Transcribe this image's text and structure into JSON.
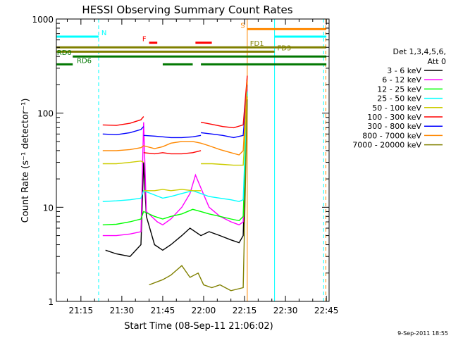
{
  "chart_data": {
    "type": "line",
    "title": "HESSI Observing Summary Count Rates",
    "xlabel": "Start Time (08-Sep-11 21:06:02)",
    "ylabel": "Count Rate (s⁻¹ detector⁻¹)",
    "y_scale": "log",
    "ylim": [
      1,
      1000
    ],
    "xlim_minutes_after_21h": [
      6.0,
      46.0
    ],
    "x_ticks": [
      "21:15",
      "21:30",
      "21:45",
      "22:00",
      "22:15",
      "22:30",
      "22:45"
    ],
    "x_tick_minutes": [
      15,
      30,
      45,
      60,
      75,
      90,
      105
    ],
    "y_ticks": [
      "1",
      "10",
      "100",
      "1000"
    ],
    "y_tick_values": [
      1,
      10,
      100,
      1000
    ],
    "legend_title": [
      "Det 1,3,4,5,6,",
      "Att 0"
    ],
    "series": [
      {
        "name": "3 - 6 keV",
        "color": "#000000",
        "segments": [
          [
            [
              24,
              3.5
            ],
            [
              28,
              3.2
            ],
            [
              33,
              3.0
            ],
            [
              37,
              4.0
            ],
            [
              38,
              30
            ],
            [
              39,
              8
            ],
            [
              42,
              4
            ],
            [
              45,
              3.5
            ],
            [
              48,
              4.0
            ],
            [
              52,
              5
            ],
            [
              55,
              6
            ],
            [
              59,
              5
            ],
            [
              62,
              5.5
            ],
            [
              66,
              5
            ],
            [
              70,
              4.5
            ],
            [
              73,
              4.2
            ],
            [
              74.5,
              5
            ],
            [
              76,
              150
            ]
          ]
        ]
      },
      {
        "name": "6 - 12 keV",
        "color": "#ff00ff",
        "segments": [
          [
            [
              23,
              5.0
            ],
            [
              28,
              5.0
            ],
            [
              33,
              5.2
            ],
            [
              37,
              5.5
            ],
            [
              38,
              80
            ],
            [
              39,
              9
            ],
            [
              43,
              7
            ],
            [
              45,
              6.5
            ],
            [
              48,
              7.5
            ],
            [
              52,
              10
            ],
            [
              55,
              14
            ],
            [
              57,
              22
            ],
            [
              59,
              16
            ],
            [
              62,
              10
            ],
            [
              66,
              8
            ],
            [
              70,
              7
            ],
            [
              73,
              6.5
            ],
            [
              74.5,
              7
            ],
            [
              76,
              180
            ]
          ]
        ]
      },
      {
        "name": "12 - 25 keV",
        "color": "#00ff00",
        "segments": [
          [
            [
              23,
              6.5
            ],
            [
              28,
              6.6
            ],
            [
              33,
              7.0
            ],
            [
              37,
              7.5
            ],
            [
              38,
              9
            ],
            [
              42,
              8
            ],
            [
              45,
              7.5
            ],
            [
              48,
              8
            ],
            [
              52,
              8.5
            ],
            [
              56,
              9.5
            ],
            [
              59,
              9
            ],
            [
              62,
              8.5
            ],
            [
              66,
              8
            ],
            [
              70,
              7.5
            ],
            [
              73,
              7.2
            ],
            [
              74.5,
              8
            ],
            [
              76,
              160
            ]
          ]
        ]
      },
      {
        "name": "25 - 50 keV",
        "color": "#00ffff",
        "segments": [
          [
            [
              23,
              11.5
            ],
            [
              28,
              11.7
            ],
            [
              33,
              12.0
            ],
            [
              37,
              12.5
            ],
            [
              38,
              15
            ],
            [
              42,
              13.5
            ],
            [
              45,
              12.5
            ],
            [
              48,
              13
            ],
            [
              52,
              14
            ],
            [
              56,
              15
            ],
            [
              59,
              14
            ],
            [
              62,
              13
            ],
            [
              66,
              12.5
            ],
            [
              70,
              12
            ],
            [
              73,
              11.5
            ],
            [
              74.5,
              12
            ],
            [
              76,
              170
            ]
          ]
        ]
      },
      {
        "name": "50 - 100 keV",
        "color": "#cccc00",
        "segments": [
          [
            [
              23,
              29
            ],
            [
              28,
              29
            ],
            [
              33,
              30
            ],
            [
              37,
              31
            ],
            [
              38,
              30
            ]
          ],
          [
            [
              38,
              15
            ],
            [
              42,
              15
            ],
            [
              45,
              15.5
            ],
            [
              48,
              15
            ],
            [
              52,
              15.5
            ],
            [
              56,
              15
            ],
            [
              59,
              15
            ]
          ],
          [
            [
              59,
              29
            ],
            [
              63,
              29
            ],
            [
              67,
              28.5
            ],
            [
              71,
              28
            ],
            [
              74.5,
              28
            ],
            [
              76,
              150
            ]
          ]
        ]
      },
      {
        "name": "100 - 300 keV",
        "color": "#ff0000",
        "segments": [
          [
            [
              23,
              75
            ],
            [
              28,
              74
            ],
            [
              33,
              78
            ],
            [
              37,
              85
            ],
            [
              38,
              92
            ]
          ],
          [
            [
              38,
              38
            ],
            [
              42,
              37
            ],
            [
              45,
              38
            ],
            [
              48,
              37
            ],
            [
              52,
              37
            ],
            [
              56,
              38
            ],
            [
              59,
              40
            ]
          ],
          [
            [
              59,
              80
            ],
            [
              63,
              76
            ],
            [
              67,
              72
            ],
            [
              71,
              70
            ],
            [
              74.5,
              75
            ],
            [
              76,
              250
            ]
          ]
        ]
      },
      {
        "name": "300 - 800 keV",
        "color": "#0000ff",
        "segments": [
          [
            [
              23,
              60
            ],
            [
              28,
              59
            ],
            [
              33,
              62
            ],
            [
              37,
              67
            ],
            [
              38,
              72
            ]
          ],
          [
            [
              38,
              58
            ],
            [
              42,
              57
            ],
            [
              45,
              56
            ],
            [
              48,
              55
            ],
            [
              52,
              55
            ],
            [
              56,
              56
            ],
            [
              59,
              58
            ]
          ],
          [
            [
              59,
              62
            ],
            [
              63,
              60
            ],
            [
              67,
              58
            ],
            [
              71,
              55
            ],
            [
              74.5,
              58
            ],
            [
              76,
              200
            ]
          ]
        ]
      },
      {
        "name": "800 - 7000 keV",
        "color": "#ff8800",
        "segments": [
          [
            [
              23,
              40
            ],
            [
              28,
              40
            ],
            [
              33,
              41
            ],
            [
              37,
              43
            ],
            [
              38,
              45
            ],
            [
              42,
              42
            ],
            [
              45,
              44
            ],
            [
              48,
              48
            ],
            [
              52,
              50
            ],
            [
              56,
              50
            ],
            [
              59,
              48
            ],
            [
              62,
              45
            ],
            [
              66,
              41
            ],
            [
              70,
              38
            ],
            [
              73,
              36
            ],
            [
              74.5,
              40
            ],
            [
              76,
              220
            ]
          ]
        ]
      },
      {
        "name": "7000 - 20000 keV",
        "color": "#808000",
        "segments": [
          [
            [
              40,
              1.5
            ],
            [
              45,
              1.7
            ],
            [
              48,
              1.9
            ],
            [
              52,
              2.4
            ],
            [
              55,
              1.8
            ],
            [
              58,
              2.0
            ],
            [
              60,
              1.5
            ],
            [
              63,
              1.4
            ],
            [
              66,
              1.5
            ],
            [
              70,
              1.3
            ],
            [
              74.5,
              1.4
            ],
            [
              76,
              140
            ]
          ]
        ]
      }
    ],
    "state_bars": [
      {
        "label": "N",
        "color": "#00ffff",
        "value": 650,
        "start": 6,
        "end": 21.5,
        "label_at": 22.5
      },
      {
        "label": "",
        "color": "#00ffff",
        "value": 650,
        "start": 86,
        "end": 105,
        "label_at": null
      },
      {
        "label": "S",
        "color": "#ff8800",
        "value": 780,
        "start": 76,
        "end": 105,
        "label_at": 73.5
      },
      {
        "label": "F",
        "color": "#ff0000",
        "value": 560,
        "start": 40,
        "end": 43,
        "label_at": 37.5
      },
      {
        "label": "",
        "color": "#ff0000",
        "value": 560,
        "start": 57,
        "end": 63,
        "label_at": null
      },
      {
        "label": "FD1",
        "color": "#808000",
        "value": 500,
        "start": 6,
        "end": 86,
        "label_at": 77
      },
      {
        "label": "",
        "color": "#808000",
        "value": 500,
        "start": 86,
        "end": 105,
        "label_at": null
      },
      {
        "label": "FD3",
        "color": "#808000",
        "value": 450,
        "start": 6,
        "end": 86,
        "label_at": 87
      },
      {
        "label": "RD0",
        "color": "#007700",
        "value": 400,
        "start": 12,
        "end": 105,
        "label_at": 6.2
      },
      {
        "label": "RD6",
        "color": "#007700",
        "value": 330,
        "start": 6,
        "end": 12,
        "label_at": 13.5
      },
      {
        "label": "",
        "color": "#007700",
        "value": 330,
        "start": 45,
        "end": 56,
        "label_at": null
      },
      {
        "label": "",
        "color": "#007700",
        "value": 330,
        "start": 59,
        "end": 105,
        "label_at": null
      }
    ],
    "vertical_lines": [
      {
        "x": 6.0,
        "color": "#00ffff",
        "dashed": false
      },
      {
        "x": 21.5,
        "color": "#00ffff",
        "dashed": true
      },
      {
        "x": 76.0,
        "color": "#ff8800",
        "dashed": false
      },
      {
        "x": 86.0,
        "color": "#00ffff",
        "dashed": false
      },
      {
        "x": 104.0,
        "color": "#00ffff",
        "dashed": true
      },
      {
        "x": 104.8,
        "color": "#ff8800",
        "dashed": true
      }
    ],
    "timestamp": "9-Sep-2011 18:55"
  }
}
